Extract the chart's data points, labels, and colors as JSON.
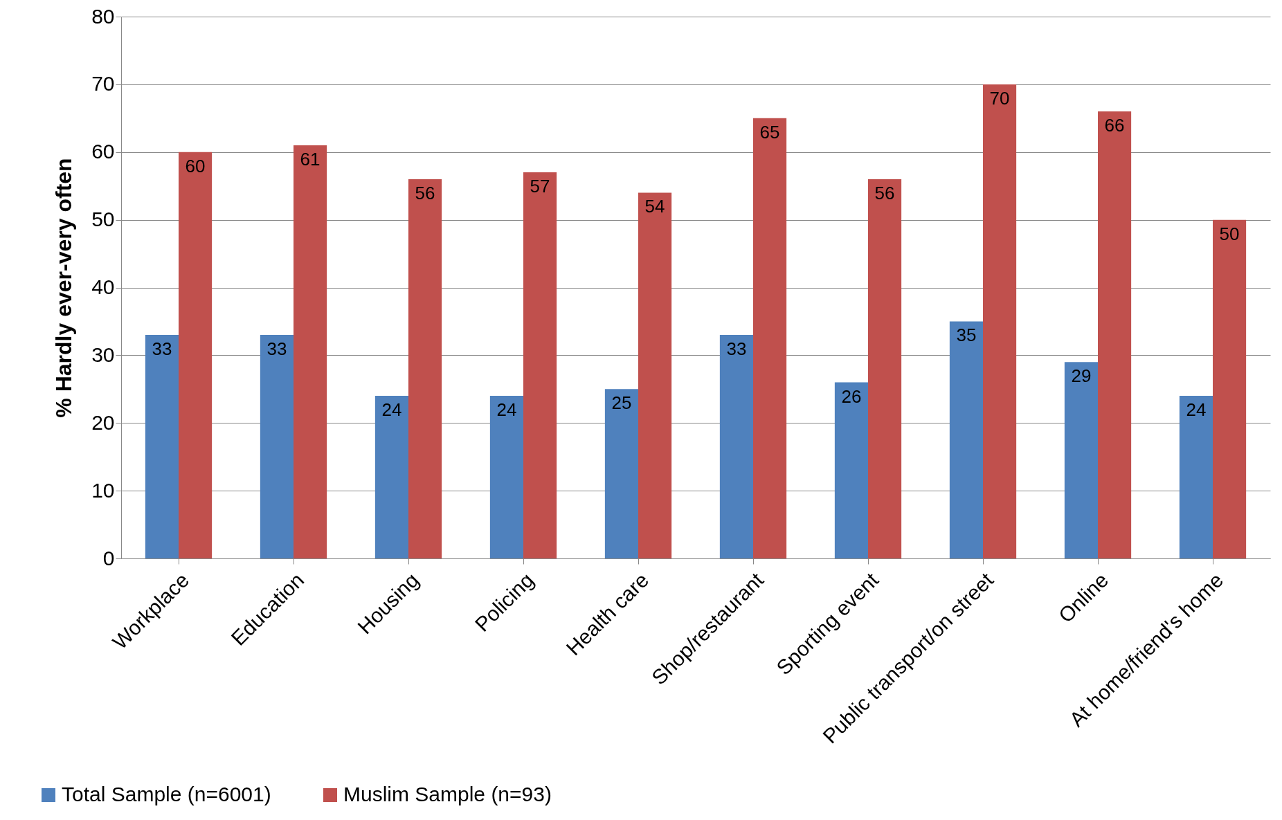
{
  "chart_data": {
    "type": "bar",
    "ylabel": "% Hardly ever-very often",
    "categories": [
      "Workplace",
      "Education",
      "Housing",
      "Policing",
      "Health care",
      "Shop/restaurant",
      "Sporting event",
      "Public transport/on street",
      "Online",
      "At home/friend's home"
    ],
    "series": [
      {
        "name": "Total Sample (n=6001)",
        "color": "#4f81bd",
        "values": [
          33,
          33,
          24,
          24,
          25,
          33,
          26,
          35,
          29,
          24
        ]
      },
      {
        "name": "Muslim Sample (n=93)",
        "color": "#c0504d",
        "values": [
          60,
          61,
          56,
          57,
          54,
          65,
          56,
          70,
          66,
          50
        ]
      }
    ],
    "ylim": [
      0,
      80
    ],
    "yticks": [
      0,
      10,
      20,
      30,
      40,
      50,
      60,
      70,
      80
    ],
    "grid": "y",
    "legend": "bottom",
    "data_labels": true
  }
}
